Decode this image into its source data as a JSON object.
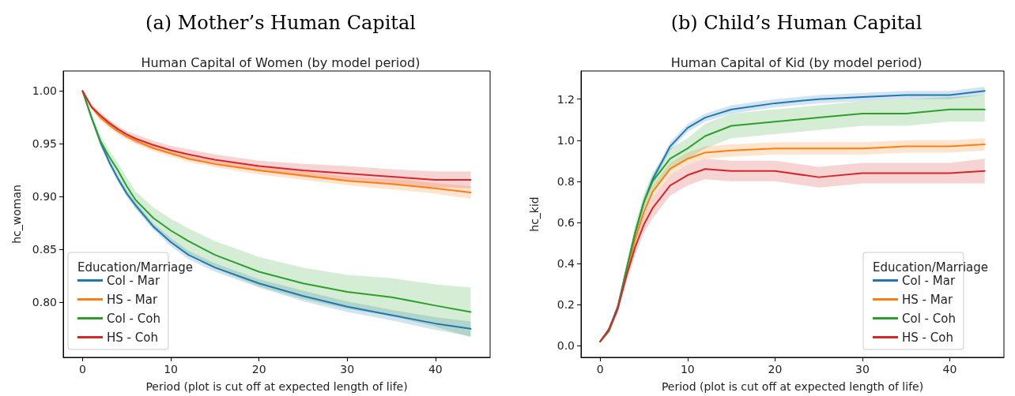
{
  "chart_data": [
    {
      "type": "line",
      "title": "(a) Mother’s Human Capital",
      "subtitle": "Human Capital of Women (by model period)",
      "xlabel": "Period (plot is cut off at expected length of life)",
      "ylabel": "hc_woman",
      "legend_title": "Education/Marriage",
      "legend": "bottom left",
      "x": [
        0,
        1,
        2,
        3,
        4,
        5,
        6,
        8,
        10,
        12,
        15,
        20,
        25,
        30,
        35,
        40,
        44
      ],
      "xlim": [
        -2.2,
        46.2
      ],
      "xticks": [
        0,
        10,
        20,
        30,
        40
      ],
      "ylim": [
        0.748,
        1.019
      ],
      "yticks": [
        {
          "value": 0.8,
          "label": "0.80"
        },
        {
          "value": 0.85,
          "label": "0.85"
        },
        {
          "value": 0.9,
          "label": "0.90"
        },
        {
          "value": 0.95,
          "label": "0.95"
        },
        {
          "value": 1.0,
          "label": "1.00"
        }
      ],
      "series": [
        {
          "name": "Col - Mar",
          "color": "#1f77b4",
          "values": [
            1.0,
            0.975,
            0.952,
            0.933,
            0.917,
            0.903,
            0.892,
            0.872,
            0.857,
            0.845,
            0.833,
            0.818,
            0.806,
            0.796,
            0.788,
            0.78,
            0.775
          ],
          "lower": [
            1.0,
            0.973,
            0.949,
            0.93,
            0.914,
            0.9,
            0.889,
            0.869,
            0.853,
            0.841,
            0.829,
            0.814,
            0.801,
            0.791,
            0.783,
            0.774,
            0.768
          ],
          "upper": [
            1.0,
            0.977,
            0.955,
            0.936,
            0.92,
            0.906,
            0.895,
            0.875,
            0.861,
            0.849,
            0.837,
            0.822,
            0.811,
            0.801,
            0.793,
            0.786,
            0.782
          ]
        },
        {
          "name": "HS - Mar",
          "color": "#ff7f0e",
          "values": [
            1.0,
            0.985,
            0.975,
            0.968,
            0.962,
            0.957,
            0.953,
            0.946,
            0.941,
            0.936,
            0.931,
            0.925,
            0.92,
            0.915,
            0.912,
            0.908,
            0.904
          ],
          "lower": [
            1.0,
            0.983,
            0.972,
            0.965,
            0.959,
            0.954,
            0.95,
            0.943,
            0.938,
            0.933,
            0.928,
            0.921,
            0.916,
            0.911,
            0.907,
            0.903,
            0.898
          ],
          "upper": [
            1.0,
            0.987,
            0.978,
            0.971,
            0.965,
            0.96,
            0.956,
            0.949,
            0.944,
            0.939,
            0.934,
            0.929,
            0.924,
            0.919,
            0.917,
            0.913,
            0.91
          ]
        },
        {
          "name": "Col - Coh",
          "color": "#2ca02c",
          "values": [
            1.0,
            0.975,
            0.953,
            0.938,
            0.925,
            0.91,
            0.897,
            0.88,
            0.868,
            0.858,
            0.845,
            0.829,
            0.818,
            0.81,
            0.805,
            0.797,
            0.791
          ],
          "lower": [
            1.0,
            0.972,
            0.948,
            0.932,
            0.918,
            0.902,
            0.889,
            0.87,
            0.857,
            0.846,
            0.832,
            0.815,
            0.803,
            0.794,
            0.787,
            0.777,
            0.767
          ],
          "upper": [
            1.0,
            0.978,
            0.958,
            0.944,
            0.932,
            0.918,
            0.905,
            0.89,
            0.879,
            0.87,
            0.858,
            0.843,
            0.833,
            0.826,
            0.823,
            0.817,
            0.814
          ]
        },
        {
          "name": "HS - Coh",
          "color": "#d62728",
          "values": [
            1.0,
            0.985,
            0.977,
            0.97,
            0.964,
            0.959,
            0.955,
            0.949,
            0.944,
            0.94,
            0.935,
            0.929,
            0.925,
            0.922,
            0.919,
            0.916,
            0.916
          ],
          "lower": [
            1.0,
            0.983,
            0.974,
            0.967,
            0.961,
            0.956,
            0.951,
            0.945,
            0.94,
            0.935,
            0.93,
            0.924,
            0.919,
            0.915,
            0.912,
            0.909,
            0.908
          ],
          "upper": [
            1.0,
            0.987,
            0.98,
            0.973,
            0.967,
            0.962,
            0.959,
            0.953,
            0.948,
            0.945,
            0.94,
            0.934,
            0.931,
            0.929,
            0.926,
            0.924,
            0.924
          ]
        }
      ]
    },
    {
      "type": "line",
      "title": "(b) Child’s Human Capital",
      "subtitle": "Human Capital of Kid (by model period)",
      "xlabel": "Period (plot is cut off at expected length of life)",
      "ylabel": "hc_kid",
      "legend_title": "Education/Marriage",
      "legend": "bottom right",
      "x": [
        0,
        1,
        2,
        3,
        4,
        5,
        6,
        8,
        10,
        12,
        15,
        20,
        25,
        30,
        35,
        40,
        44
      ],
      "xlim": [
        -2.2,
        46.2
      ],
      "xticks": [
        0,
        10,
        20,
        30,
        40
      ],
      "ylim": [
        -0.057,
        1.337
      ],
      "yticks": [
        {
          "value": 0,
          "label": "0.0"
        },
        {
          "value": 0.2,
          "label": "0.2"
        },
        {
          "value": 0.4,
          "label": "0.4"
        },
        {
          "value": 0.6,
          "label": "0.6"
        },
        {
          "value": 0.8,
          "label": "0.8"
        },
        {
          "value": 1.0,
          "label": "1.0"
        },
        {
          "value": 1.2,
          "label": "1.2"
        }
      ],
      "series": [
        {
          "name": "Col - Mar",
          "color": "#1f77b4",
          "values": [
            0.02,
            0.08,
            0.19,
            0.37,
            0.55,
            0.7,
            0.81,
            0.97,
            1.06,
            1.11,
            1.15,
            1.18,
            1.2,
            1.21,
            1.22,
            1.22,
            1.24
          ],
          "lower": [
            0.02,
            0.07,
            0.18,
            0.35,
            0.53,
            0.68,
            0.79,
            0.95,
            1.04,
            1.09,
            1.13,
            1.16,
            1.18,
            1.19,
            1.2,
            1.2,
            1.22
          ],
          "upper": [
            0.02,
            0.09,
            0.2,
            0.39,
            0.57,
            0.72,
            0.83,
            0.99,
            1.08,
            1.13,
            1.17,
            1.2,
            1.22,
            1.23,
            1.24,
            1.24,
            1.26
          ]
        },
        {
          "name": "HS - Mar",
          "color": "#ff7f0e",
          "values": [
            null,
            null,
            0.18,
            0.35,
            0.52,
            0.65,
            0.75,
            0.86,
            0.91,
            0.94,
            0.95,
            0.96,
            0.96,
            0.96,
            0.97,
            0.97,
            0.98
          ],
          "lower": [
            0.02,
            0.07,
            0.17,
            0.33,
            0.5,
            0.62,
            0.72,
            0.83,
            0.88,
            0.91,
            0.92,
            0.93,
            0.93,
            0.93,
            0.94,
            0.94,
            0.95
          ],
          "upper": [
            0.02,
            0.09,
            0.19,
            0.37,
            0.54,
            0.68,
            0.78,
            0.89,
            0.94,
            0.97,
            0.98,
            0.99,
            0.99,
            0.99,
            1.0,
            1.0,
            1.01
          ]
        },
        {
          "name": "Col - Coh",
          "color": "#2ca02c",
          "values": [
            0.02,
            0.07,
            0.18,
            0.37,
            0.55,
            0.7,
            0.8,
            0.91,
            0.96,
            1.02,
            1.07,
            1.09,
            1.11,
            1.13,
            1.13,
            1.15,
            1.15
          ],
          "lower": [
            0.02,
            0.06,
            0.16,
            0.34,
            0.51,
            0.66,
            0.76,
            0.86,
            0.91,
            0.96,
            1.01,
            1.03,
            1.05,
            1.07,
            1.07,
            1.09,
            1.09
          ],
          "upper": [
            0.02,
            0.08,
            0.2,
            0.4,
            0.59,
            0.74,
            0.84,
            0.96,
            1.01,
            1.08,
            1.13,
            1.15,
            1.17,
            1.19,
            1.2,
            1.21,
            1.22
          ]
        },
        {
          "name": "HS - Coh",
          "color": "#d62728",
          "values": [
            0.02,
            0.08,
            0.18,
            0.34,
            0.48,
            0.59,
            0.67,
            0.78,
            0.83,
            0.86,
            0.85,
            0.85,
            0.82,
            0.84,
            0.84,
            0.84,
            0.85
          ],
          "lower": [
            0.02,
            0.07,
            0.16,
            0.31,
            0.44,
            0.55,
            0.62,
            0.73,
            0.78,
            0.81,
            0.8,
            0.8,
            0.77,
            0.79,
            0.79,
            0.79,
            0.79
          ],
          "upper": [
            0.02,
            0.09,
            0.2,
            0.37,
            0.52,
            0.63,
            0.72,
            0.83,
            0.88,
            0.91,
            0.9,
            0.9,
            0.87,
            0.89,
            0.89,
            0.89,
            0.91
          ]
        }
      ]
    }
  ]
}
